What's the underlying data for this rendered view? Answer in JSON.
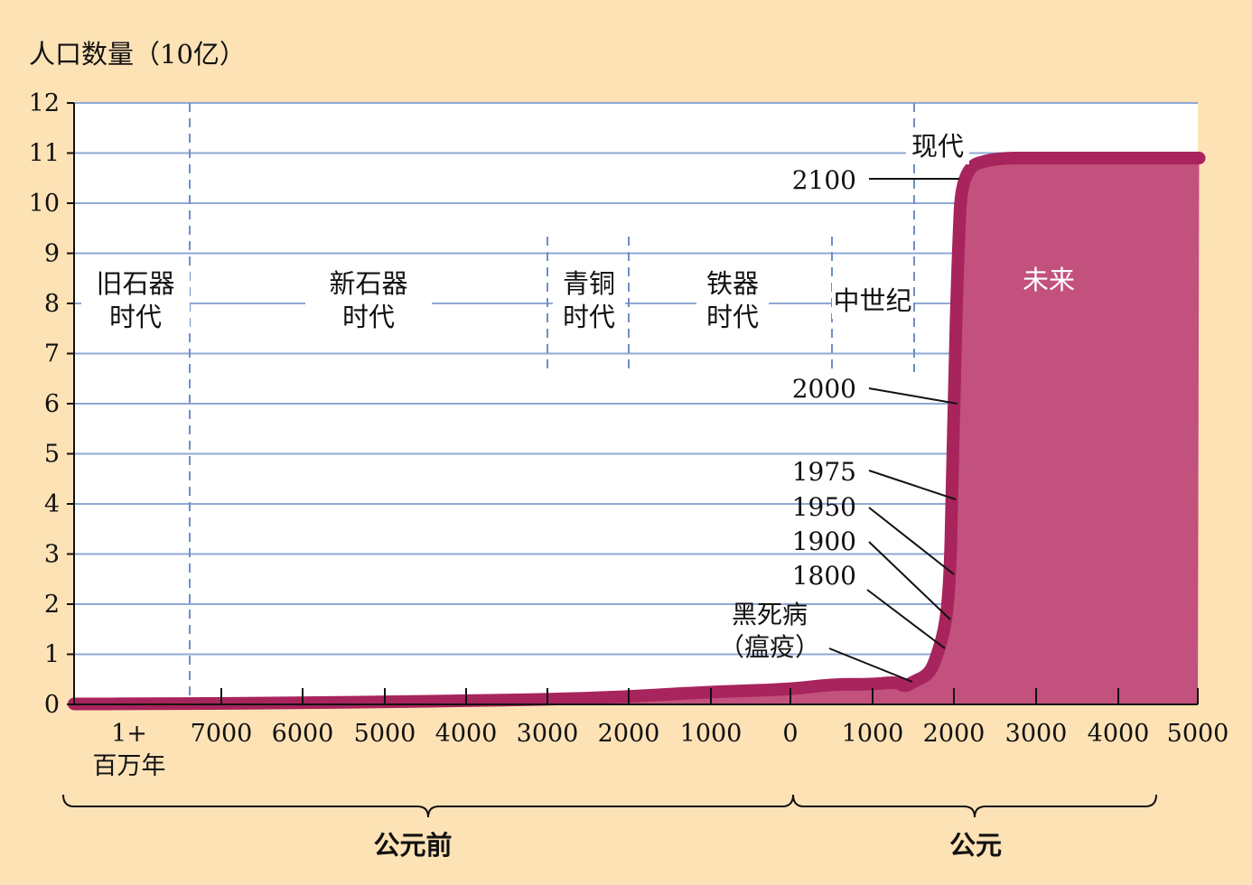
{
  "chart_data": {
    "type": "area",
    "title": "",
    "ylabel": "人口数量（10亿）",
    "xlabel": "",
    "ylim": [
      0,
      12
    ],
    "y_ticks": [
      "0",
      "1",
      "2",
      "3",
      "4",
      "5",
      "6",
      "7",
      "8",
      "9",
      "10",
      "11",
      "12"
    ],
    "x_tick_labels": [
      {
        "id": "mya",
        "line1": "1+",
        "line2": "百万年"
      },
      {
        "id": "bce7000",
        "line1": "7000"
      },
      {
        "id": "bce6000",
        "line1": "6000"
      },
      {
        "id": "bce5000",
        "line1": "5000"
      },
      {
        "id": "bce4000",
        "line1": "4000"
      },
      {
        "id": "bce3000",
        "line1": "3000"
      },
      {
        "id": "bce2000",
        "line1": "2000"
      },
      {
        "id": "bce1000",
        "line1": "1000"
      },
      {
        "id": "ce0",
        "line1": "0"
      },
      {
        "id": "ce1000",
        "line1": "1000"
      },
      {
        "id": "ce2000",
        "line1": "2000"
      },
      {
        "id": "ce3000",
        "line1": "3000"
      },
      {
        "id": "ce4000",
        "line1": "4000"
      },
      {
        "id": "ce5000",
        "line1": "5000"
      }
    ],
    "series": [
      {
        "values_description": "population in billions by year",
        "x": [
          -1000000,
          -8000,
          -7000,
          -6000,
          -5000,
          -4000,
          -3000,
          -2000,
          -1000,
          0,
          500,
          1000,
          1300,
          1400,
          1500,
          1700,
          1800,
          1900,
          1950,
          1975,
          2000,
          2050,
          2100,
          2500,
          3000,
          4000,
          5000
        ],
        "y": [
          0.01,
          0.01,
          0.02,
          0.03,
          0.05,
          0.07,
          0.1,
          0.15,
          0.25,
          0.3,
          0.4,
          0.4,
          0.45,
          0.35,
          0.45,
          0.6,
          1.0,
          1.6,
          2.5,
          4.0,
          6.1,
          9.0,
          10.7,
          10.9,
          10.9,
          10.9,
          10.9
        ]
      }
    ],
    "eras": [
      {
        "id": "paleolithic",
        "line1": "旧石器",
        "line2": "时代"
      },
      {
        "id": "neolithic",
        "line1": "新石器",
        "line2": "时代"
      },
      {
        "id": "bronze",
        "line1": "青铜",
        "line2": "时代"
      },
      {
        "id": "iron",
        "line1": "铁器",
        "line2": "时代"
      },
      {
        "id": "medieval",
        "line1": "中世纪"
      },
      {
        "id": "modern",
        "line1": "现代"
      },
      {
        "id": "future",
        "line1": "未来"
      }
    ],
    "annotations": [
      {
        "id": "y2100",
        "label": "2100",
        "x": 2100,
        "y": 10.7
      },
      {
        "id": "y2000",
        "label": "2000",
        "x": 2000,
        "y": 6.1
      },
      {
        "id": "y1975",
        "label": "1975",
        "x": 1975,
        "y": 4.0
      },
      {
        "id": "y1950",
        "label": "1950",
        "x": 1950,
        "y": 2.5
      },
      {
        "id": "y1900",
        "label": "1900",
        "x": 1900,
        "y": 1.6
      },
      {
        "id": "y1800",
        "label": "1800",
        "x": 1800,
        "y": 1.0
      },
      {
        "id": "plague",
        "line1": "黑死病",
        "line2": "（瘟疫）",
        "x": 1400,
        "y": 0.35
      }
    ],
    "braces": [
      {
        "id": "bce",
        "label": "公元前"
      },
      {
        "id": "ce",
        "label": "公元"
      }
    ],
    "grid": true,
    "colors": {
      "background": "#fde2b6",
      "plot": "#ffffff",
      "grid": "#8fa8d4",
      "curve": "#a8245c",
      "fill": "#c2517d"
    }
  }
}
